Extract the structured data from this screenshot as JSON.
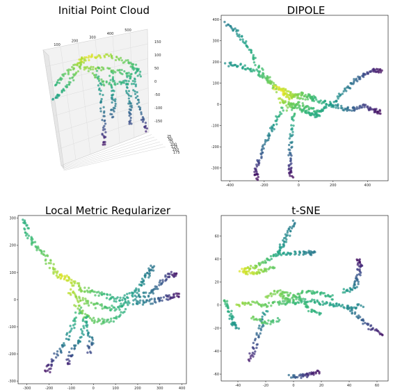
{
  "chart_data": [
    {
      "type": "scatter",
      "projection": "3d",
      "title": "Initial Point Cloud",
      "x_ticks": [
        "100",
        "200",
        "300",
        "400",
        "500"
      ],
      "z_ticks": [
        "150",
        "100",
        "50",
        "0",
        "-50",
        "-100",
        "-150"
      ],
      "y_ticks": [
        "25",
        "50",
        "75",
        "100",
        "125",
        "150",
        "175"
      ],
      "colormap": "viridis"
    },
    {
      "type": "scatter",
      "title": "DIPOLE",
      "x_ticks": [
        "-400",
        "-200",
        "0",
        "200",
        "400"
      ],
      "y_ticks": [
        "400",
        "300",
        "200",
        "100",
        "0",
        "-100",
        "-200",
        "-300"
      ],
      "xlim": [
        -450,
        520
      ],
      "ylim": [
        -360,
        420
      ],
      "colormap": "viridis",
      "strokes": [
        {
          "points": [
            [
              -420,
              380
            ],
            [
              -360,
              340
            ],
            [
              -300,
              280
            ],
            [
              -250,
              200
            ],
            [
              -180,
              110
            ],
            [
              -120,
              60
            ]
          ],
          "c": [
            0.42,
            0.5,
            0.58,
            0.65,
            0.75,
            0.85
          ]
        },
        {
          "points": [
            [
              -420,
              190
            ],
            [
              -340,
              180
            ],
            [
              -260,
              160
            ],
            [
              -190,
              130
            ],
            [
              -130,
              90
            ]
          ],
          "c": [
            0.5,
            0.56,
            0.63,
            0.72,
            0.82
          ]
        },
        {
          "points": [
            [
              -140,
              80
            ],
            [
              -80,
              60
            ],
            [
              -20,
              40
            ],
            [
              60,
              30
            ],
            [
              140,
              10
            ],
            [
              200,
              0
            ]
          ],
          "c": [
            0.95,
            0.9,
            0.82,
            0.72,
            0.62,
            0.55
          ]
        },
        {
          "points": [
            [
              -60,
              -20
            ],
            [
              0,
              10
            ],
            [
              60,
              -20
            ],
            [
              120,
              -40
            ],
            [
              160,
              -10
            ]
          ],
          "c": [
            0.8,
            0.75,
            0.7,
            0.62,
            0.58
          ]
        },
        {
          "points": [
            [
              200,
              0
            ],
            [
              260,
              60
            ],
            [
              320,
              110
            ],
            [
              380,
              140
            ],
            [
              440,
              160
            ],
            [
              480,
              160
            ]
          ],
          "c": [
            0.55,
            0.45,
            0.35,
            0.25,
            0.12,
            0.03
          ]
        },
        {
          "points": [
            [
              180,
              0
            ],
            [
              260,
              -20
            ],
            [
              320,
              -20
            ],
            [
              380,
              -10
            ],
            [
              440,
              -30
            ],
            [
              480,
              -35
            ]
          ],
          "c": [
            0.55,
            0.42,
            0.3,
            0.2,
            0.1,
            0.03
          ]
        },
        {
          "points": [
            [
              -90,
              -20
            ],
            [
              -140,
              -90
            ],
            [
              -180,
              -160
            ],
            [
              -220,
              -240
            ],
            [
              -250,
              -310
            ],
            [
              -240,
              -350
            ]
          ],
          "c": [
            0.7,
            0.55,
            0.42,
            0.28,
            0.12,
            0.03
          ]
        },
        {
          "points": [
            [
              -30,
              -20
            ],
            [
              -40,
              -120
            ],
            [
              -50,
              -220
            ],
            [
              -50,
              -300
            ],
            [
              -40,
              -340
            ]
          ],
          "c": [
            0.72,
            0.55,
            0.35,
            0.15,
            0.03
          ]
        },
        {
          "points": [
            [
              -110,
              20
            ],
            [
              -60,
              0
            ],
            [
              -20,
              -10
            ],
            [
              30,
              -30
            ],
            [
              80,
              -50
            ],
            [
              120,
              -50
            ]
          ],
          "c": [
            0.88,
            0.8,
            0.74,
            0.68,
            0.62,
            0.6
          ]
        },
        {
          "points": [
            [
              -100,
              60
            ],
            [
              -60,
              30
            ],
            [
              0,
              50
            ],
            [
              60,
              40
            ],
            [
              100,
              20
            ]
          ],
          "c": [
            0.97,
            0.9,
            0.8,
            0.72,
            0.66
          ]
        }
      ]
    },
    {
      "type": "scatter",
      "title": "Local Metric Regularizer",
      "x_ticks": [
        "-300",
        "-200",
        "-100",
        "0",
        "100",
        "200",
        "300",
        "400"
      ],
      "y_ticks": [
        "300",
        "200",
        "100",
        "0",
        "-100",
        "-200",
        "-300"
      ],
      "xlim": [
        -340,
        420
      ],
      "ylim": [
        -310,
        310
      ],
      "colormap": "viridis",
      "strokes": [
        {
          "points": [
            [
              -310,
              300
            ],
            [
              -300,
              240
            ],
            [
              -260,
              200
            ],
            [
              -220,
              160
            ],
            [
              -180,
              110
            ],
            [
              -140,
              80
            ]
          ],
          "c": [
            0.62,
            0.66,
            0.7,
            0.76,
            0.84,
            0.92
          ]
        },
        {
          "points": [
            [
              -140,
              90
            ],
            [
              -100,
              70
            ],
            [
              -60,
              40
            ],
            [
              0,
              30
            ],
            [
              60,
              10
            ],
            [
              120,
              0
            ],
            [
              180,
              20
            ]
          ],
          "c": [
            0.96,
            0.9,
            0.82,
            0.74,
            0.66,
            0.6,
            0.55
          ]
        },
        {
          "points": [
            [
              -110,
              30
            ],
            [
              -60,
              0
            ],
            [
              0,
              -20
            ],
            [
              60,
              -30
            ],
            [
              120,
              -30
            ],
            [
              160,
              -10
            ]
          ],
          "c": [
            0.9,
            0.82,
            0.76,
            0.7,
            0.64,
            0.58
          ]
        },
        {
          "points": [
            [
              -80,
              -10
            ],
            [
              -40,
              -60
            ],
            [
              20,
              -80
            ],
            [
              80,
              -80
            ],
            [
              140,
              -40
            ]
          ],
          "c": [
            0.85,
            0.78,
            0.74,
            0.7,
            0.62
          ]
        },
        {
          "points": [
            [
              180,
              20
            ],
            [
              220,
              60
            ],
            [
              250,
              100
            ],
            [
              270,
              120
            ]
          ],
          "c": [
            0.55,
            0.48,
            0.42,
            0.38
          ]
        },
        {
          "points": [
            [
              190,
              10
            ],
            [
              250,
              20
            ],
            [
              300,
              60
            ],
            [
              340,
              90
            ],
            [
              380,
              100
            ]
          ],
          "c": [
            0.5,
            0.4,
            0.3,
            0.18,
            0.05
          ]
        },
        {
          "points": [
            [
              180,
              -10
            ],
            [
              240,
              -10
            ],
            [
              300,
              0
            ],
            [
              350,
              10
            ],
            [
              390,
              20
            ]
          ],
          "c": [
            0.5,
            0.4,
            0.28,
            0.15,
            0.04
          ]
        },
        {
          "points": [
            [
              -60,
              -30
            ],
            [
              -100,
              -110
            ],
            [
              -140,
              -180
            ],
            [
              -190,
              -230
            ],
            [
              -210,
              -270
            ]
          ],
          "c": [
            0.72,
            0.55,
            0.38,
            0.18,
            0.04
          ]
        },
        {
          "points": [
            [
              -20,
              -60
            ],
            [
              -60,
              -140
            ],
            [
              -100,
              -200
            ],
            [
              -120,
              -240
            ]
          ],
          "c": [
            0.68,
            0.5,
            0.3,
            0.1
          ]
        },
        {
          "points": [
            [
              -40,
              -80
            ],
            [
              -10,
              -150
            ],
            [
              -20,
              -200
            ]
          ],
          "c": [
            0.62,
            0.38,
            0.2
          ]
        }
      ]
    },
    {
      "type": "scatter",
      "title": "t-SNE",
      "x_ticks": [
        "-40",
        "-20",
        "0",
        "20",
        "40",
        "60"
      ],
      "y_ticks": [
        "60",
        "40",
        "20",
        "0",
        "-20",
        "-40",
        "-60"
      ],
      "xlim": [
        -52,
        68
      ],
      "ylim": [
        -66,
        78
      ],
      "colormap": "viridis",
      "strokes": [
        {
          "points": [
            [
              0,
              72
            ],
            [
              -4,
              62
            ],
            [
              -8,
              52
            ],
            [
              -12,
              44
            ],
            [
              -20,
              38
            ],
            [
              -28,
              33
            ],
            [
              -36,
              31
            ]
          ],
          "c": [
            0.4,
            0.46,
            0.52,
            0.6,
            0.72,
            0.82,
            0.94
          ]
        },
        {
          "points": [
            [
              -12,
              45
            ],
            [
              0,
              45
            ],
            [
              10,
              46
            ],
            [
              15,
              45
            ]
          ],
          "c": [
            0.6,
            0.52,
            0.44,
            0.4
          ]
        },
        {
          "points": [
            [
              -38,
              30
            ],
            [
              -30,
              28
            ],
            [
              -22,
              30
            ],
            [
              -14,
              34
            ]
          ],
          "c": [
            0.95,
            0.9,
            0.82,
            0.74
          ]
        },
        {
          "points": [
            [
              -50,
              5
            ],
            [
              -46,
              -5
            ],
            [
              -44,
              -15
            ],
            [
              -40,
              -20
            ]
          ],
          "c": [
            0.7,
            0.62,
            0.55,
            0.5
          ]
        },
        {
          "points": [
            [
              -40,
              0
            ],
            [
              -30,
              2
            ],
            [
              -20,
              0
            ],
            [
              -10,
              2
            ],
            [
              0,
              2
            ],
            [
              10,
              4
            ],
            [
              20,
              2
            ],
            [
              30,
              0
            ],
            [
              40,
              -2
            ],
            [
              50,
              0
            ]
          ],
          "c": [
            0.85,
            0.8,
            0.76,
            0.72,
            0.68,
            0.64,
            0.6,
            0.56,
            0.5,
            0.45
          ]
        },
        {
          "points": [
            [
              -20,
              8
            ],
            [
              -10,
              12
            ],
            [
              0,
              8
            ],
            [
              10,
              12
            ],
            [
              20,
              10
            ],
            [
              30,
              6
            ]
          ],
          "c": [
            0.82,
            0.78,
            0.74,
            0.7,
            0.66,
            0.62
          ]
        },
        {
          "points": [
            [
              -20,
              -4
            ],
            [
              -24,
              -20
            ],
            [
              -28,
              -36
            ],
            [
              -32,
              -50
            ]
          ],
          "c": [
            0.55,
            0.38,
            0.22,
            0.06
          ]
        },
        {
          "points": [
            [
              40,
              -2
            ],
            [
              48,
              -12
            ],
            [
              56,
              -20
            ],
            [
              64,
              -26
            ]
          ],
          "c": [
            0.45,
            0.32,
            0.18,
            0.05
          ]
        },
        {
          "points": [
            [
              -2,
              -62
            ],
            [
              6,
              -62
            ],
            [
              12,
              -60
            ],
            [
              18,
              -58
            ]
          ],
          "c": [
            0.35,
            0.22,
            0.12,
            0.04
          ]
        },
        {
          "points": [
            [
              36,
              12
            ],
            [
              44,
              14
            ],
            [
              46,
              24
            ],
            [
              48,
              34
            ],
            [
              46,
              40
            ]
          ],
          "c": [
            0.6,
            0.45,
            0.3,
            0.15,
            0.03
          ]
        },
        {
          "points": [
            [
              -10,
              10
            ],
            [
              -4,
              4
            ],
            [
              4,
              6
            ],
            [
              12,
              -4
            ],
            [
              20,
              -8
            ]
          ],
          "c": [
            0.8,
            0.74,
            0.7,
            0.66,
            0.62
          ]
        },
        {
          "points": [
            [
              -30,
              -10
            ],
            [
              -20,
              -16
            ],
            [
              -10,
              -12
            ]
          ],
          "c": [
            0.78,
            0.72,
            0.68
          ]
        }
      ]
    }
  ]
}
